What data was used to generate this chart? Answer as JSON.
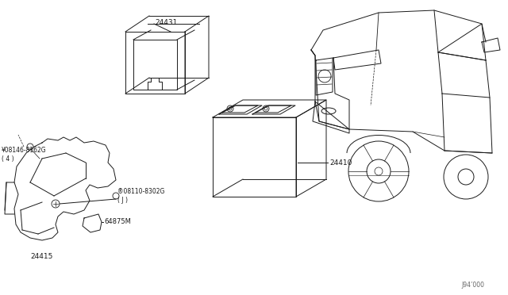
{
  "bg_color": "#ffffff",
  "line_color": "#1a1a1a",
  "watermark": "J94’000",
  "parts": {
    "battery_tray_label": "24431",
    "battery_label": "24410",
    "bracket_label": "24415",
    "bolt1_label": "¥08146-8162G\n( 4 )",
    "bolt2_label": "®08110-8302G\n( J )",
    "clamp_label": "64875M"
  }
}
